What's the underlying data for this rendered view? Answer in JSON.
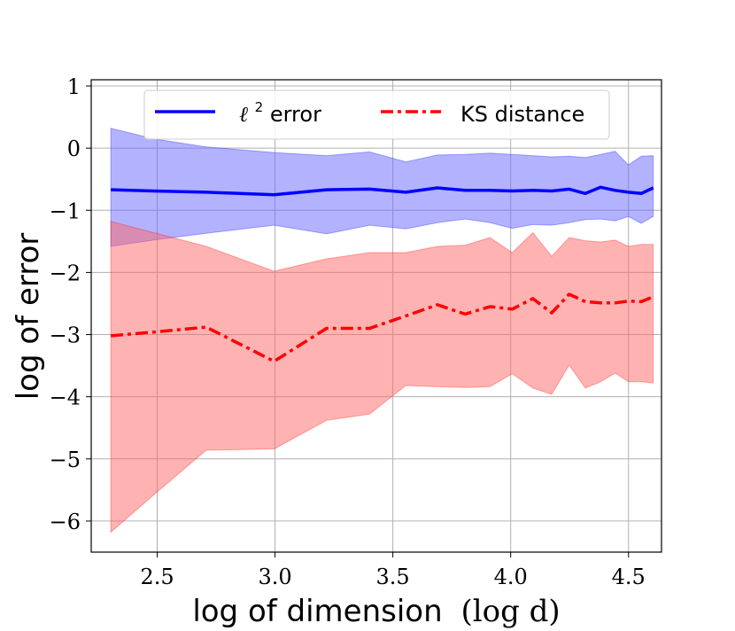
{
  "chart_data": {
    "type": "line",
    "title": "",
    "xlabel": "log of dimension",
    "xlabel_math": "(log d)",
    "ylabel": "log of error",
    "xlim": [
      2.22,
      4.64
    ],
    "ylim": [
      -6.5,
      1.1
    ],
    "xticks": [
      2.5,
      3.0,
      3.5,
      4.0,
      4.5
    ],
    "xtick_labels": [
      "2.5",
      "3.0",
      "3.5",
      "4.0",
      "4.5"
    ],
    "yticks": [
      1,
      0,
      -1,
      -2,
      -3,
      -4,
      -5,
      -6
    ],
    "ytick_labels": [
      "1",
      "0",
      "−1",
      "−2",
      "−3",
      "−4",
      "−5",
      "−6"
    ],
    "grid": true,
    "legend": {
      "position": "top-center"
    },
    "x": [
      2.303,
      2.485,
      2.708,
      2.996,
      3.219,
      3.401,
      3.555,
      3.689,
      3.807,
      3.912,
      4.007,
      4.094,
      4.174,
      4.248,
      4.317,
      4.382,
      4.443,
      4.5,
      4.554,
      4.605
    ],
    "series": [
      {
        "name": "ℓ² error",
        "label_main": "ℓ",
        "label_sup": "2",
        "label_rest": " error",
        "color": "#0000ff",
        "style": "solid",
        "values": [
          -0.67,
          -0.69,
          -0.71,
          -0.75,
          -0.67,
          -0.66,
          -0.71,
          -0.64,
          -0.68,
          -0.68,
          -0.69,
          -0.68,
          -0.69,
          -0.66,
          -0.73,
          -0.63,
          -0.68,
          -0.71,
          -0.73,
          -0.64
        ],
        "upper": [
          0.32,
          0.15,
          0.02,
          -0.07,
          -0.12,
          -0.06,
          -0.22,
          -0.11,
          -0.1,
          -0.08,
          -0.1,
          -0.12,
          -0.14,
          -0.13,
          -0.15,
          -0.1,
          -0.05,
          -0.27,
          -0.13,
          -0.12
        ],
        "lower": [
          -1.58,
          -1.48,
          -1.37,
          -1.24,
          -1.38,
          -1.24,
          -1.3,
          -1.2,
          -1.14,
          -1.2,
          -1.29,
          -1.23,
          -1.24,
          -1.2,
          -1.15,
          -1.14,
          -1.17,
          -1.1,
          -1.21,
          -1.1
        ],
        "band_color": "#6666ff"
      },
      {
        "name": "KS distance",
        "label_main": "KS distance",
        "label_sup": "",
        "label_rest": "",
        "color": "#ff0000",
        "style": "dashdot",
        "values": [
          -3.02,
          -2.96,
          -2.88,
          -3.43,
          -2.9,
          -2.9,
          -2.7,
          -2.52,
          -2.67,
          -2.55,
          -2.59,
          -2.42,
          -2.65,
          -2.35,
          -2.47,
          -2.49,
          -2.49,
          -2.46,
          -2.47,
          -2.39
        ],
        "upper": [
          -1.18,
          -1.36,
          -1.58,
          -1.98,
          -1.78,
          -1.68,
          -1.68,
          -1.58,
          -1.56,
          -1.44,
          -1.68,
          -1.36,
          -1.74,
          -1.44,
          -1.49,
          -1.51,
          -1.48,
          -1.58,
          -1.55,
          -1.55
        ],
        "lower": [
          -6.18,
          -5.58,
          -4.86,
          -4.84,
          -4.38,
          -4.28,
          -3.82,
          -3.84,
          -3.85,
          -3.84,
          -3.63,
          -3.86,
          -3.96,
          -3.49,
          -3.86,
          -3.76,
          -3.62,
          -3.76,
          -3.76,
          -3.78
        ],
        "band_color": "#ff6666"
      }
    ]
  }
}
